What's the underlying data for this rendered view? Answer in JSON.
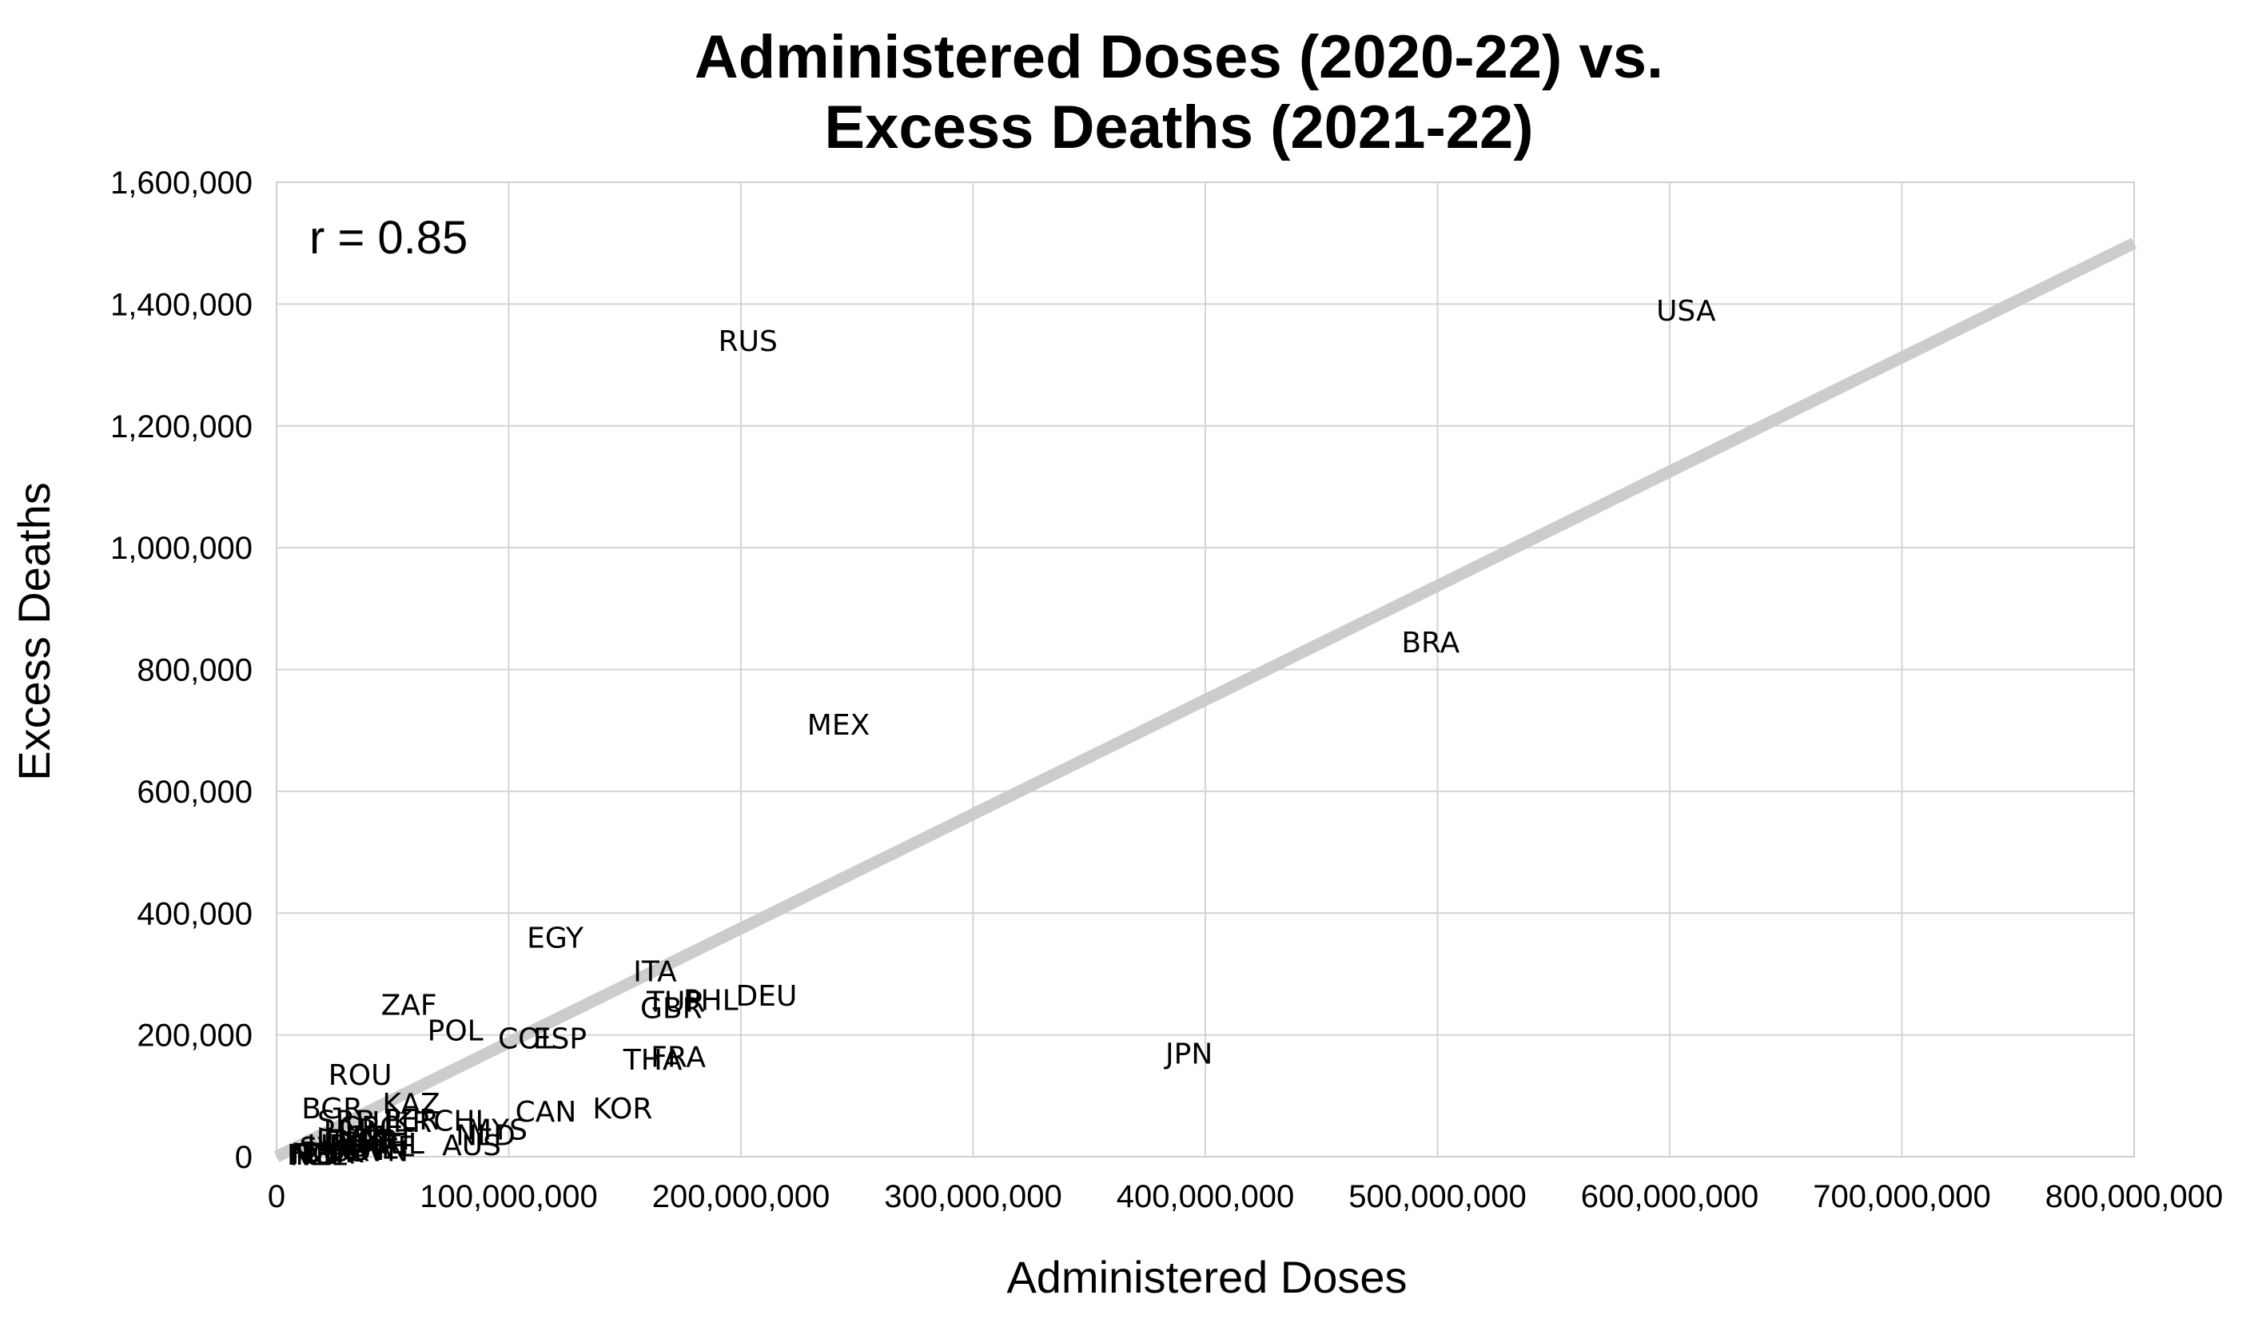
{
  "chart_data": {
    "type": "scatter",
    "title": [
      "Administered Doses (2020-22) vs.",
      "Excess Deaths (2021-22)"
    ],
    "xlabel": "Administered Doses",
    "ylabel": "Excess Deaths",
    "xlim": [
      0,
      800000000
    ],
    "ylim": [
      0,
      1600000
    ],
    "x_ticks": [
      "0",
      "100,000,000",
      "200,000,000",
      "300,000,000",
      "400,000,000",
      "500,000,000",
      "600,000,000",
      "700,000,000",
      "800,000,000"
    ],
    "y_ticks": [
      "0",
      "200,000",
      "400,000",
      "600,000",
      "800,000",
      "1,000,000",
      "1,200,000",
      "1,400,000",
      "1,600,000"
    ],
    "grid": true,
    "annotation": "r = 0.85",
    "trendline": {
      "x": [
        0,
        800000000
      ],
      "y": [
        0,
        1500000
      ],
      "color": "#cccccc"
    },
    "points": [
      {
        "label": "USA",
        "x": 607000000,
        "y": 1390000
      },
      {
        "label": "RUS",
        "x": 203000000,
        "y": 1340000
      },
      {
        "label": "BRA",
        "x": 497000000,
        "y": 845000
      },
      {
        "label": "MEX",
        "x": 242000000,
        "y": 710000
      },
      {
        "label": "JPN",
        "x": 393000000,
        "y": 170000
      },
      {
        "label": "EGY",
        "x": 120000000,
        "y": 360000
      },
      {
        "label": "ITA",
        "x": 163000000,
        "y": 305000
      },
      {
        "label": "DEU",
        "x": 211000000,
        "y": 265000
      },
      {
        "label": "PHL",
        "x": 187000000,
        "y": 258000
      },
      {
        "label": "TUR",
        "x": 172000000,
        "y": 255000
      },
      {
        "label": "GBR",
        "x": 170000000,
        "y": 245000
      },
      {
        "label": "ZAF",
        "x": 57000000,
        "y": 250000
      },
      {
        "label": "POL",
        "x": 77000000,
        "y": 208000
      },
      {
        "label": "COL",
        "x": 108000000,
        "y": 195000
      },
      {
        "label": "ESP",
        "x": 122000000,
        "y": 195000
      },
      {
        "label": "THA",
        "x": 162000000,
        "y": 160000
      },
      {
        "label": "FRA",
        "x": 173000000,
        "y": 165000
      },
      {
        "label": "ROU",
        "x": 36000000,
        "y": 135000
      },
      {
        "label": "CAN",
        "x": 116000000,
        "y": 75000
      },
      {
        "label": "KOR",
        "x": 149000000,
        "y": 80000
      },
      {
        "label": "KAZ",
        "x": 58000000,
        "y": 88000
      },
      {
        "label": "BGR",
        "x": 24000000,
        "y": 80000
      },
      {
        "label": "CHL",
        "x": 80000000,
        "y": 60000
      },
      {
        "label": "AUS",
        "x": 84000000,
        "y": 20000
      },
      {
        "label": "NLD",
        "x": 90000000,
        "y": 36000
      },
      {
        "label": "MYS",
        "x": 95000000,
        "y": 45000
      },
      {
        "label": "PER",
        "x": 58000000,
        "y": 62000
      },
      {
        "label": "UKR",
        "x": 54000000,
        "y": 58000
      },
      {
        "label": "SRB",
        "x": 30000000,
        "y": 60000
      },
      {
        "label": "GRC",
        "x": 40000000,
        "y": 50000
      },
      {
        "label": "HUN",
        "x": 34000000,
        "y": 42000
      },
      {
        "label": "CZE",
        "x": 42000000,
        "y": 34000
      },
      {
        "label": "PRT",
        "x": 48000000,
        "y": 28000
      },
      {
        "label": "BEL",
        "x": 52000000,
        "y": 22000
      },
      {
        "label": "SWE",
        "x": 46000000,
        "y": 18000
      },
      {
        "label": "CHE",
        "x": 40000000,
        "y": 14000
      },
      {
        "label": "AUT",
        "x": 36000000,
        "y": 12000
      },
      {
        "label": "ISR",
        "x": 30000000,
        "y": 10000
      },
      {
        "label": "DNK",
        "x": 24000000,
        "y": 8000
      },
      {
        "label": "NOR",
        "x": 20000000,
        "y": 6000
      },
      {
        "label": "FIN",
        "x": 16000000,
        "y": 5000
      },
      {
        "label": "IRL",
        "x": 14000000,
        "y": 4000
      },
      {
        "label": "NZL",
        "x": 18000000,
        "y": 3000
      },
      {
        "label": "SVK",
        "x": 22000000,
        "y": 16000
      },
      {
        "label": "HRV",
        "x": 26000000,
        "y": 20000
      },
      {
        "label": "LTU",
        "x": 28000000,
        "y": 26000
      },
      {
        "label": "LVA",
        "x": 32000000,
        "y": 30000
      },
      {
        "label": "EST",
        "x": 38000000,
        "y": 24000
      },
      {
        "label": "SVN",
        "x": 44000000,
        "y": 10000
      }
    ]
  }
}
